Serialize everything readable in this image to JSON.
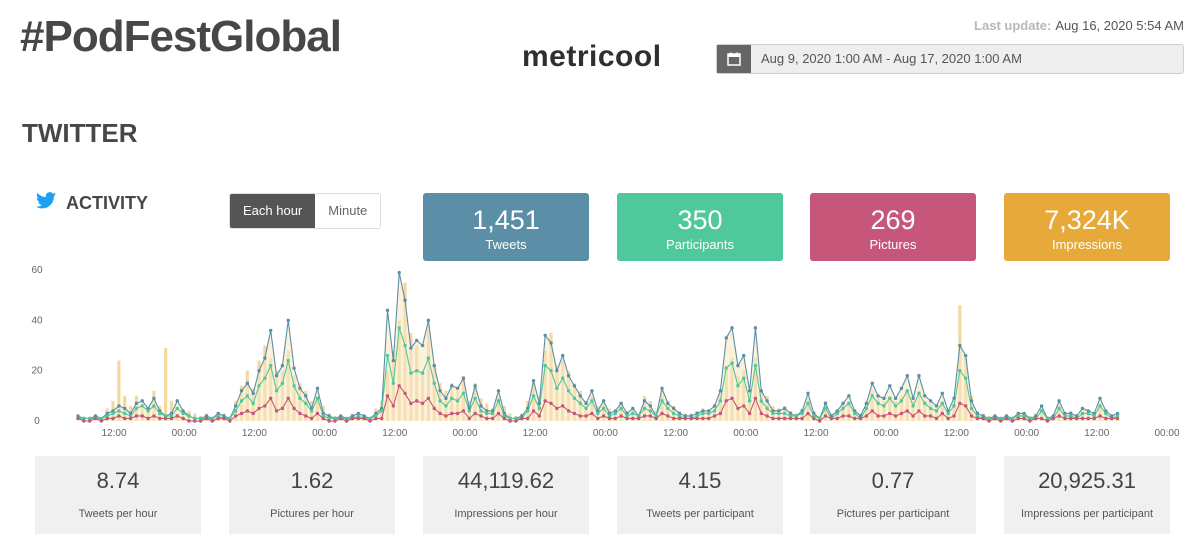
{
  "header": {
    "hashtag": "#PodFestGlobal",
    "logo_text": "metricool",
    "last_update_label": "Last update:",
    "last_update_value": "Aug 16, 2020 5:54 AM",
    "date_range": "Aug 9, 2020 1:00 AM - Aug 17, 2020 1:00 AM",
    "calendar_icon": "calendar-icon"
  },
  "section": {
    "title": "TWITTER",
    "activity_label": "ACTIVITY",
    "twitter_icon": "twitter-bird-icon"
  },
  "granularity": {
    "options": [
      "Each hour",
      "Minute"
    ],
    "selected": "Each hour"
  },
  "kpis": [
    {
      "value": "1,451",
      "label": "Tweets",
      "color": "#5b8fa8"
    },
    {
      "value": "350",
      "label": "Participants",
      "color": "#4fc99c"
    },
    {
      "value": "269",
      "label": "Pictures",
      "color": "#c6577a"
    },
    {
      "value": "7,324K",
      "label": "Impressions",
      "color": "#e6a93a"
    }
  ],
  "stats": [
    {
      "value": "8.74",
      "label": "Tweets per hour"
    },
    {
      "value": "1.62",
      "label": "Pictures per hour"
    },
    {
      "value": "44,119.62",
      "label": "Impressions per hour"
    },
    {
      "value": "4.15",
      "label": "Tweets per participant"
    },
    {
      "value": "0.77",
      "label": "Pictures per participant"
    },
    {
      "value": "20,925.31",
      "label": "Impressions per participant"
    }
  ],
  "chart_data": {
    "type": "line",
    "y_ticks": [
      "0",
      "20",
      "40",
      "60"
    ],
    "ylim": [
      0,
      60
    ],
    "x_ticks": [
      "12:00",
      "00:00",
      "12:00",
      "00:00",
      "12:00",
      "00:00",
      "12:00",
      "00:00",
      "12:00",
      "00:00",
      "12:00",
      "00:00",
      "12:00",
      "00:00",
      "12:00",
      "00:00"
    ],
    "grid": false,
    "colors": {
      "tweets": "#5b8fa8",
      "participants": "#4fc99c",
      "pictures": "#c6577a",
      "impressions": "#f1d28e",
      "impressions_shade": "#f7e6c0"
    },
    "tweets": [
      2,
      1,
      1,
      2,
      1,
      3,
      4,
      6,
      5,
      3,
      7,
      8,
      5,
      9,
      4,
      2,
      3,
      8,
      4,
      2,
      1,
      1,
      2,
      1,
      3,
      2,
      1,
      6,
      12,
      15,
      11,
      20,
      25,
      36,
      18,
      22,
      40,
      21,
      13,
      10,
      5,
      13,
      3,
      2,
      1,
      2,
      1,
      2,
      3,
      2,
      1,
      3,
      5,
      44,
      24,
      59,
      48,
      29,
      32,
      30,
      40,
      22,
      12,
      9,
      14,
      13,
      17,
      5,
      14,
      6,
      4,
      4,
      12,
      3,
      1,
      1,
      2,
      5,
      16,
      7,
      34,
      31,
      20,
      26,
      18,
      14,
      10,
      7,
      12,
      4,
      8,
      3,
      4,
      7,
      3,
      5,
      2,
      8,
      6,
      2,
      13,
      7,
      5,
      3,
      2,
      2,
      3,
      4,
      4,
      6,
      12,
      33,
      37,
      22,
      26,
      12,
      37,
      12,
      8,
      4,
      4,
      5,
      3,
      2,
      4,
      11,
      3,
      1,
      7,
      2,
      4,
      7,
      10,
      4,
      2,
      7,
      15,
      10,
      9,
      14,
      9,
      13,
      18,
      9,
      18,
      10,
      8,
      6,
      11,
      4,
      9,
      30,
      26,
      8,
      3,
      2,
      1,
      2,
      1,
      2,
      1,
      3,
      3,
      1,
      2,
      6,
      1,
      2,
      8,
      3,
      3,
      2,
      5,
      4,
      3,
      9,
      4,
      2,
      3
    ],
    "participants": [
      1,
      1,
      1,
      1,
      1,
      2,
      3,
      4,
      3,
      2,
      5,
      6,
      4,
      6,
      3,
      2,
      2,
      5,
      3,
      2,
      1,
      1,
      1,
      1,
      2,
      1,
      1,
      4,
      8,
      10,
      7,
      14,
      17,
      22,
      12,
      15,
      24,
      14,
      9,
      7,
      4,
      9,
      2,
      1,
      1,
      1,
      1,
      1,
      2,
      1,
      1,
      2,
      4,
      26,
      15,
      37,
      30,
      19,
      20,
      19,
      25,
      15,
      8,
      6,
      9,
      8,
      11,
      4,
      9,
      4,
      3,
      3,
      8,
      2,
      1,
      1,
      1,
      4,
      10,
      5,
      22,
      20,
      13,
      17,
      12,
      9,
      7,
      5,
      8,
      3,
      5,
      2,
      3,
      5,
      2,
      3,
      2,
      5,
      4,
      2,
      8,
      5,
      3,
      2,
      1,
      1,
      2,
      3,
      3,
      4,
      8,
      21,
      23,
      14,
      17,
      8,
      22,
      8,
      5,
      3,
      3,
      3,
      2,
      2,
      3,
      7,
      2,
      1,
      5,
      1,
      3,
      5,
      7,
      3,
      1,
      5,
      10,
      7,
      6,
      9,
      6,
      8,
      12,
      6,
      11,
      7,
      5,
      4,
      7,
      3,
      6,
      20,
      17,
      5,
      2,
      1,
      1,
      1,
      1,
      1,
      1,
      2,
      2,
      1,
      1,
      4,
      1,
      1,
      5,
      2,
      2,
      1,
      3,
      3,
      2,
      6,
      3,
      1,
      2
    ],
    "pictures": [
      1,
      0,
      0,
      1,
      0,
      1,
      1,
      2,
      1,
      1,
      2,
      2,
      1,
      2,
      1,
      1,
      1,
      2,
      1,
      0,
      0,
      0,
      1,
      0,
      1,
      1,
      0,
      2,
      3,
      4,
      3,
      5,
      6,
      9,
      4,
      5,
      9,
      5,
      3,
      2,
      1,
      3,
      1,
      0,
      0,
      1,
      0,
      1,
      1,
      1,
      0,
      1,
      1,
      10,
      6,
      14,
      11,
      7,
      8,
      7,
      9,
      5,
      3,
      2,
      3,
      3,
      4,
      1,
      3,
      2,
      1,
      1,
      3,
      1,
      0,
      0,
      1,
      1,
      4,
      2,
      8,
      7,
      5,
      6,
      4,
      3,
      2,
      2,
      3,
      1,
      2,
      1,
      1,
      2,
      1,
      1,
      1,
      2,
      2,
      1,
      3,
      2,
      1,
      1,
      1,
      1,
      1,
      1,
      1,
      2,
      3,
      8,
      9,
      5,
      6,
      3,
      9,
      3,
      2,
      1,
      1,
      1,
      1,
      1,
      1,
      3,
      1,
      0,
      2,
      1,
      1,
      2,
      2,
      1,
      1,
      2,
      4,
      2,
      2,
      3,
      2,
      3,
      4,
      2,
      4,
      2,
      2,
      1,
      3,
      1,
      2,
      7,
      6,
      2,
      1,
      1,
      0,
      1,
      0,
      1,
      0,
      1,
      1,
      0,
      1,
      1,
      0,
      1,
      2,
      1,
      1,
      1,
      1,
      1,
      1,
      2,
      1,
      1,
      1
    ],
    "impressions": [
      0,
      0,
      0,
      0,
      0,
      5,
      8,
      24,
      10,
      6,
      10,
      5,
      4,
      12,
      6,
      29,
      8,
      3,
      2,
      4,
      3,
      2,
      3,
      1,
      2,
      3,
      1,
      8,
      14,
      20,
      13,
      24,
      30,
      25,
      20,
      20,
      28,
      18,
      15,
      12,
      8,
      10,
      6,
      3,
      2,
      2,
      1,
      3,
      2,
      2,
      1,
      5,
      8,
      20,
      28,
      40,
      55,
      35,
      30,
      20,
      38,
      22,
      15,
      12,
      15,
      12,
      18,
      8,
      15,
      9,
      7,
      5,
      10,
      6,
      3,
      2,
      3,
      8,
      15,
      10,
      28,
      35,
      22,
      24,
      20,
      15,
      12,
      8,
      10,
      6,
      7,
      5,
      4,
      6,
      4,
      5,
      3,
      10,
      8,
      4,
      12,
      8,
      6,
      4,
      3,
      3,
      4,
      5,
      4,
      6,
      12,
      22,
      25,
      18,
      20,
      12,
      25,
      12,
      10,
      6,
      5,
      6,
      4,
      3,
      5,
      9,
      4,
      2,
      8,
      3,
      4,
      6,
      8,
      4,
      3,
      6,
      12,
      10,
      8,
      10,
      8,
      10,
      12,
      8,
      12,
      8,
      7,
      5,
      8,
      4,
      8,
      46,
      25,
      10,
      4,
      3,
      2,
      2,
      1,
      2,
      1,
      3,
      3,
      2,
      3,
      5,
      2,
      2,
      7,
      3,
      4,
      2,
      4,
      4,
      3,
      7,
      4,
      2,
      3
    ]
  }
}
